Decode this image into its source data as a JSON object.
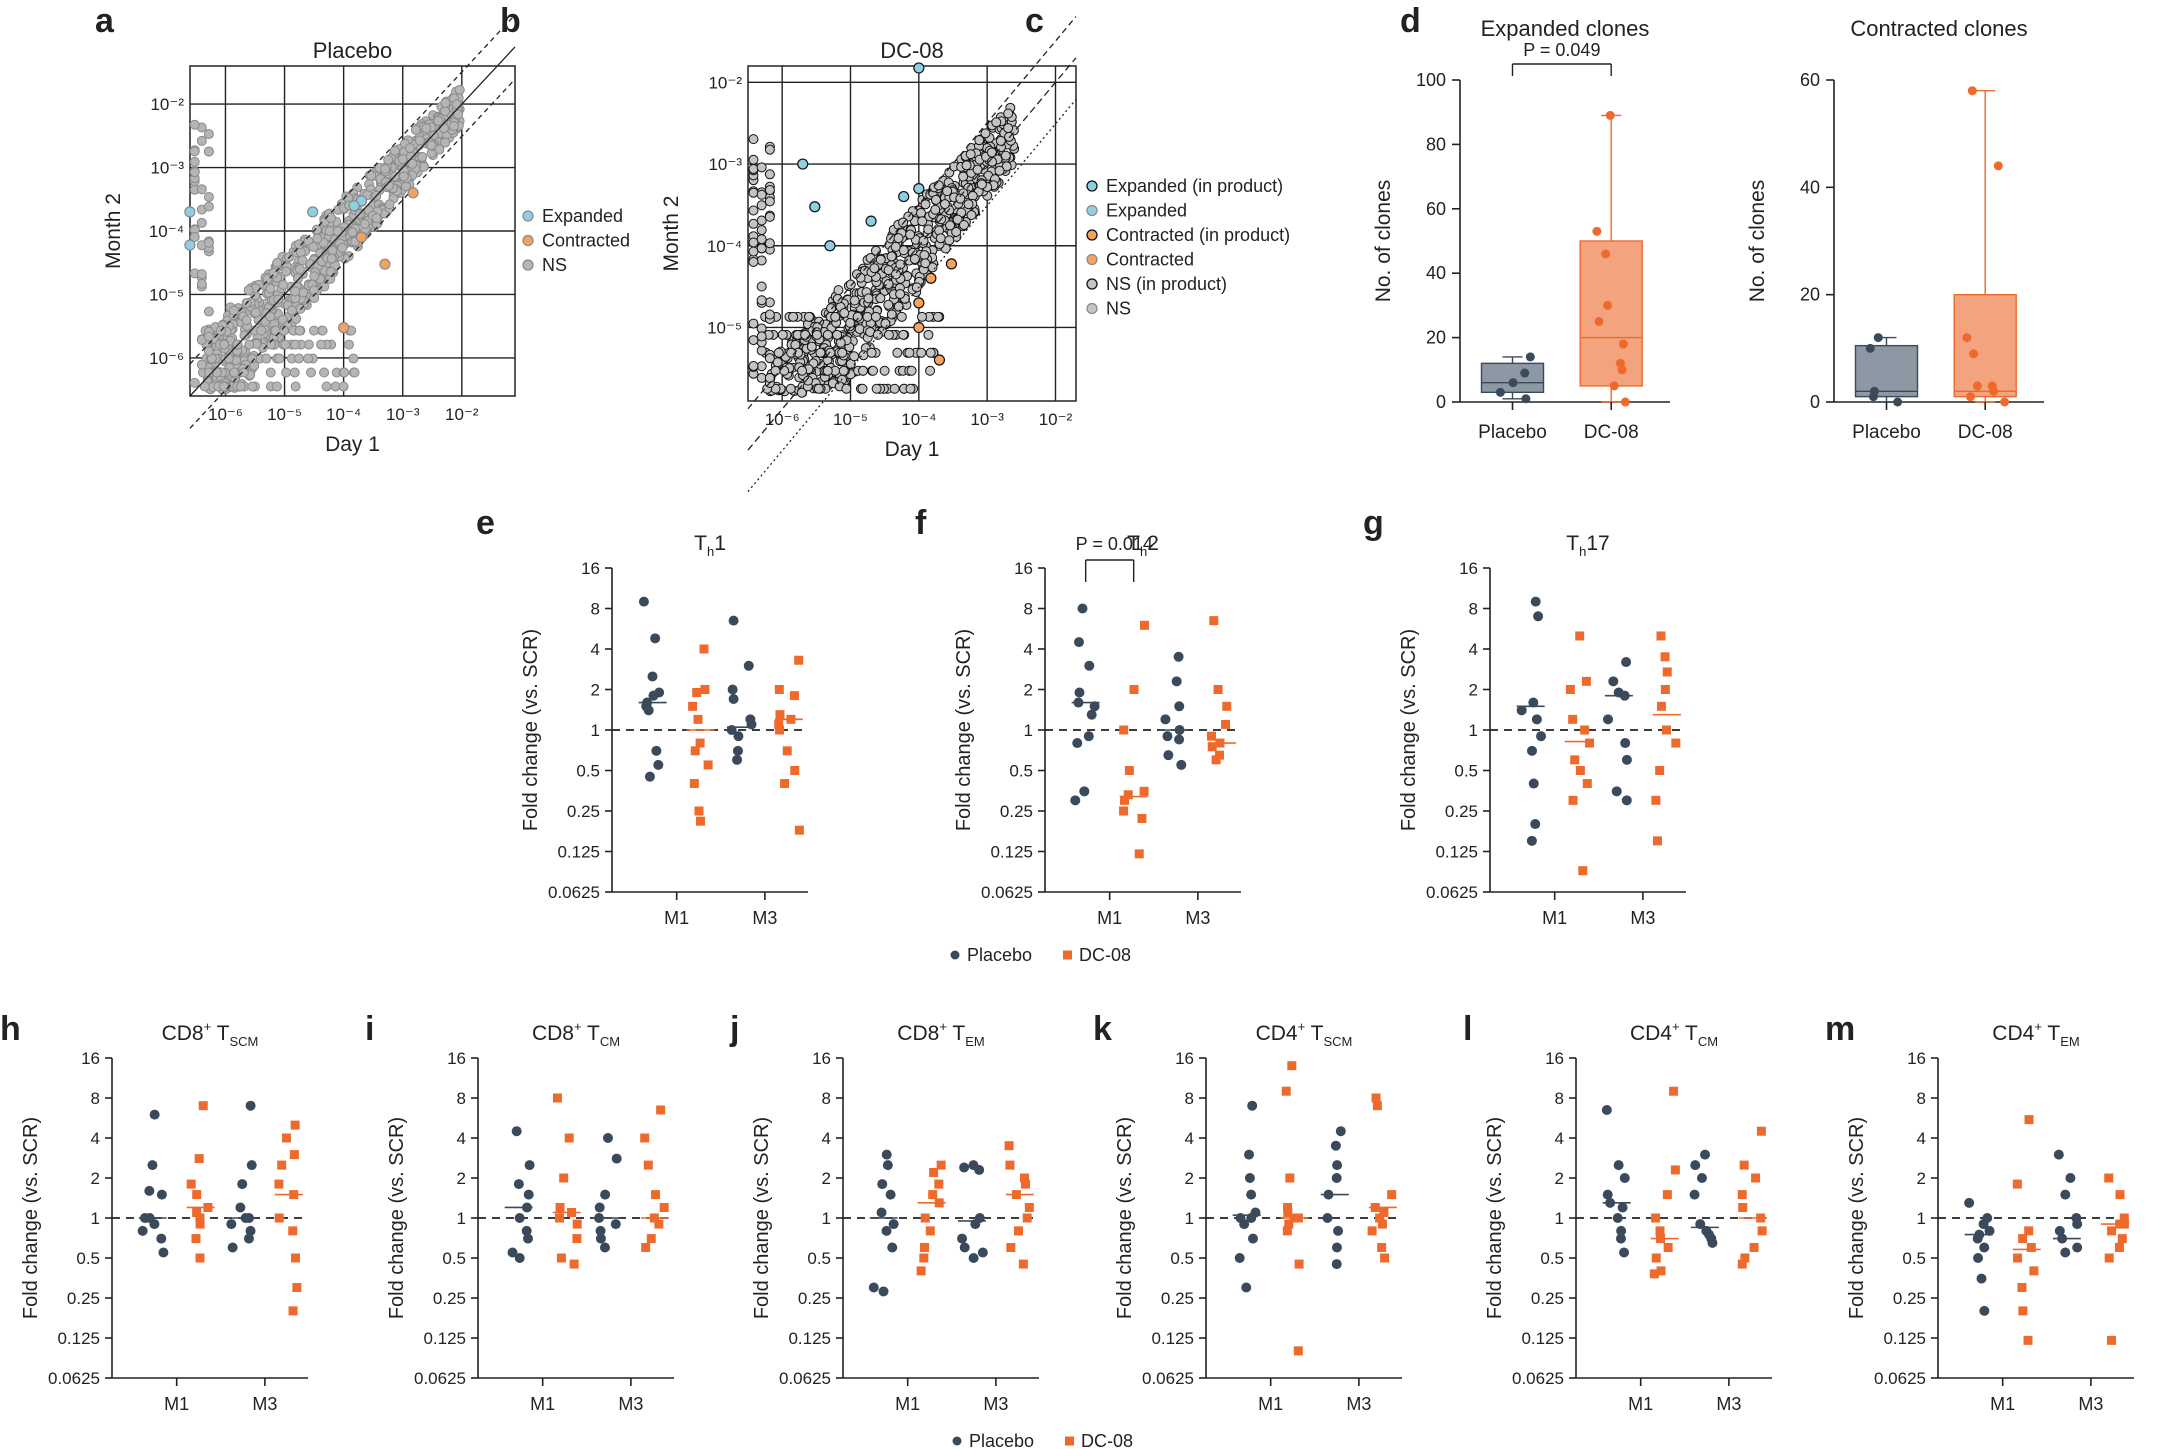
{
  "figure": {
    "panel_letters": [
      "a",
      "b",
      "c",
      "d",
      "e",
      "f",
      "g",
      "h",
      "i",
      "j",
      "k",
      "l",
      "m"
    ],
    "colors": {
      "placebo": "#3b4a5a",
      "dc08": "#ee6a2c",
      "dc08_fill": "#f3a37e",
      "placebo_fill": "#8c98a3",
      "expanded": "#8ecfe3",
      "contracted": "#f4a35f",
      "ns": "#a8a8a8",
      "axis": "#222222"
    },
    "legend_bottom": {
      "placebo": "Placebo",
      "dc08": "DC-08"
    }
  },
  "chart_data": [
    {
      "id": "a",
      "type": "scatter",
      "title": "Placebo",
      "xlabel": "Day 1",
      "ylabel": "Month 2",
      "xscale": "log",
      "yscale": "log",
      "xticks": [
        "10⁻⁶",
        "10⁻⁵",
        "10⁻⁴",
        "10⁻³",
        "10⁻²"
      ],
      "yticks": [
        "10⁻⁶",
        "10⁻⁵",
        "10⁻⁴",
        "10⁻³",
        "10⁻²"
      ],
      "legend": [
        "Expanded",
        "Contracted",
        "NS"
      ],
      "points": {
        "expanded": [
          [
            2.5e-07,
            0.0002
          ],
          [
            2.5e-07,
            6e-05
          ],
          [
            3e-05,
            0.0002
          ],
          [
            0.0002,
            0.0003
          ],
          [
            0.00015,
            0.00025
          ]
        ],
        "contracted": [
          [
            0.0002,
            8e-05
          ],
          [
            0.0005,
            3e-05
          ],
          [
            0.0015,
            0.0004
          ],
          [
            0.0001,
            3e-06
          ]
        ]
      }
    },
    {
      "id": "b",
      "type": "scatter",
      "title": "DC-08",
      "xlabel": "Day 1",
      "ylabel": "Month 2",
      "xscale": "log",
      "yscale": "log",
      "xticks": [
        "10⁻⁶",
        "10⁻⁵",
        "10⁻⁴",
        "10⁻³",
        "10⁻²"
      ],
      "yticks": [
        "10⁻⁵",
        "10⁻⁴",
        "10⁻³",
        "10⁻²"
      ],
      "legend": [
        "Expanded (in product)",
        "Expanded",
        "Contracted (in product)",
        "Contracted",
        "NS (in product)",
        "NS"
      ],
      "points": {
        "expanded": [
          [
            0.0001,
            0.015
          ],
          [
            2e-06,
            0.001
          ],
          [
            3e-06,
            0.0003
          ],
          [
            5e-06,
            0.0001
          ],
          [
            2e-05,
            0.0002
          ],
          [
            6e-05,
            0.0004
          ],
          [
            0.0001,
            0.0005
          ]
        ],
        "contracted": [
          [
            0.0001,
            2e-05
          ],
          [
            0.00015,
            4e-05
          ],
          [
            0.0003,
            6e-05
          ],
          [
            0.0001,
            1e-05
          ],
          [
            0.0002,
            4e-06
          ]
        ]
      }
    },
    {
      "id": "c",
      "type": "box",
      "title": "Expanded clones",
      "ylabel": "No. of clones",
      "ylim": [
        0,
        100
      ],
      "yticks": [
        "0",
        "20",
        "40",
        "60",
        "80",
        "100"
      ],
      "categories": [
        "Placebo",
        "DC-08"
      ],
      "annotation": "P = 0.049",
      "boxes": [
        {
          "name": "Placebo",
          "min": 1,
          "q1": 3,
          "median": 6,
          "q3": 12,
          "max": 14,
          "points": [
            14,
            9,
            6,
            3,
            1
          ]
        },
        {
          "name": "DC-08",
          "min": 0,
          "q1": 5,
          "median": 20,
          "q3": 50,
          "max": 89,
          "points": [
            89,
            53,
            46,
            30,
            25,
            18,
            12,
            10,
            5,
            0
          ]
        }
      ]
    },
    {
      "id": "d",
      "type": "box",
      "title": "Contracted clones",
      "ylabel": "No. of clones",
      "ylim": [
        0,
        60
      ],
      "yticks": [
        "0",
        "20",
        "40",
        "60"
      ],
      "categories": [
        "Placebo",
        "DC-08"
      ],
      "boxes": [
        {
          "name": "Placebo",
          "min": 0,
          "q1": 1,
          "median": 2,
          "q3": 10.5,
          "max": 12,
          "points": [
            12,
            10,
            2,
            1,
            0
          ]
        },
        {
          "name": "DC-08",
          "min": 0,
          "q1": 1,
          "median": 2,
          "q3": 20,
          "max": 58,
          "points": [
            58,
            44,
            12,
            9,
            3,
            3,
            2,
            1,
            0
          ]
        }
      ]
    },
    {
      "id": "e",
      "type": "scatter",
      "title_main": "T",
      "title_sub": "h",
      "title_tail": "1",
      "ylabel": "Fold change (vs. SCR)",
      "yscale": "log2",
      "yticks": [
        "0.0625",
        "0.125",
        "0.25",
        "0.5",
        "1",
        "2",
        "4",
        "8",
        "16"
      ],
      "categories": [
        "M1",
        "M3"
      ],
      "series": [
        {
          "name": "Placebo",
          "M1": [
            9,
            4.8,
            2.5,
            1.9,
            1.8,
            1.6,
            1.5,
            1.4,
            0.7,
            0.55,
            0.45
          ],
          "M3": [
            6.5,
            3,
            2,
            1.7,
            1.2,
            1.1,
            1,
            0.9,
            0.7,
            0.6
          ],
          "median": [
            1.6,
            1.05
          ]
        },
        {
          "name": "DC-08",
          "M1": [
            4,
            2,
            1.9,
            1.5,
            1.2,
            0.8,
            0.7,
            0.55,
            0.4,
            0.25,
            0.21
          ],
          "M3": [
            3.3,
            2,
            1.8,
            1.3,
            1.2,
            1.1,
            1,
            0.7,
            0.5,
            0.4,
            0.18
          ],
          "median": [
            1,
            1.2
          ]
        }
      ]
    },
    {
      "id": "f",
      "type": "scatter",
      "title_main": "T",
      "title_sub": "h",
      "title_tail": "2",
      "ylabel": "Fold change (vs. SCR)",
      "yscale": "log2",
      "yticks": [
        "0.0625",
        "0.125",
        "0.25",
        "0.5",
        "1",
        "2",
        "4",
        "8",
        "16"
      ],
      "categories": [
        "M1",
        "M3"
      ],
      "annotation": "P = 0.014",
      "series": [
        {
          "name": "Placebo",
          "M1": [
            8,
            4.5,
            3,
            1.9,
            1.6,
            1.5,
            1.3,
            0.9,
            0.8,
            0.35,
            0.3
          ],
          "M3": [
            3.5,
            2.3,
            1.5,
            1.2,
            1,
            0.9,
            0.85,
            0.65,
            0.55
          ],
          "median": [
            1.6,
            1
          ]
        },
        {
          "name": "DC-08",
          "M1": [
            6,
            2,
            1,
            0.5,
            0.35,
            0.33,
            0.3,
            0.25,
            0.22,
            0.12
          ],
          "M3": [
            6.5,
            2,
            1.5,
            1.1,
            0.9,
            0.8,
            0.75,
            0.65,
            0.6
          ],
          "median": [
            0.32,
            0.8
          ]
        }
      ]
    },
    {
      "id": "g",
      "type": "scatter",
      "title_main": "T",
      "title_sub": "h",
      "title_tail": "17",
      "ylabel": "Fold change (vs. SCR)",
      "yscale": "log2",
      "yticks": [
        "0.0625",
        "0.125",
        "0.25",
        "0.5",
        "1",
        "2",
        "4",
        "8",
        "16"
      ],
      "categories": [
        "M1",
        "M3"
      ],
      "series": [
        {
          "name": "Placebo",
          "M1": [
            9,
            7,
            1.6,
            1.4,
            1.2,
            0.9,
            0.7,
            0.4,
            0.2,
            0.15
          ],
          "M3": [
            3.2,
            2.3,
            1.9,
            1.8,
            1.2,
            0.8,
            0.6,
            0.35,
            0.3
          ],
          "median": [
            1.5,
            1.8
          ]
        },
        {
          "name": "DC-08",
          "M1": [
            5,
            2.3,
            2,
            1.2,
            1,
            0.8,
            0.6,
            0.5,
            0.4,
            0.3,
            0.09
          ],
          "M3": [
            5,
            3.5,
            2.7,
            2,
            1.5,
            1,
            0.8,
            0.5,
            0.3,
            0.15
          ],
          "median": [
            0.82,
            1.3
          ]
        }
      ]
    },
    {
      "id": "h",
      "type": "scatter",
      "title_main": "CD8",
      "title_sup": "+",
      "title_t": "T",
      "title_sub": "SCM",
      "ylabel": "Fold change (vs. SCR)",
      "yscale": "log2",
      "yticks": [
        "0.0625",
        "0.125",
        "0.25",
        "0.5",
        "1",
        "2",
        "4",
        "8",
        "16"
      ],
      "categories": [
        "M1",
        "M3"
      ],
      "series": [
        {
          "name": "Placebo",
          "M1": [
            6,
            2.5,
            1.6,
            1.5,
            1,
            1,
            0.9,
            0.8,
            0.7,
            0.55
          ],
          "M3": [
            7,
            2.5,
            1.8,
            1.2,
            1,
            1,
            0.9,
            0.8,
            0.7,
            0.6
          ],
          "median": [
            1,
            1
          ]
        },
        {
          "name": "DC-08",
          "M1": [
            7,
            2.8,
            1.8,
            1.5,
            1.2,
            1.1,
            1,
            0.9,
            0.7,
            0.5
          ],
          "M3": [
            5,
            4,
            3,
            2.5,
            1.8,
            1.5,
            1,
            0.8,
            0.5,
            0.3,
            0.2
          ],
          "median": [
            1.2,
            1.5
          ]
        }
      ]
    },
    {
      "id": "i",
      "type": "scatter",
      "title_main": "CD8",
      "title_sup": "+",
      "title_t": "T",
      "title_sub": "CM",
      "ylabel": "Fold change (vs. SCR)",
      "yscale": "log2",
      "yticks": [
        "0.0625",
        "0.125",
        "0.25",
        "0.5",
        "1",
        "2",
        "4",
        "8",
        "16"
      ],
      "categories": [
        "M1",
        "M3"
      ],
      "series": [
        {
          "name": "Placebo",
          "M1": [
            4.5,
            2.5,
            1.8,
            1.5,
            1.2,
            1,
            0.8,
            0.7,
            0.55,
            0.5
          ],
          "M3": [
            4,
            2.8,
            1.5,
            1.2,
            1,
            0.9,
            0.8,
            0.7,
            0.6
          ],
          "median": [
            1.2,
            1
          ]
        },
        {
          "name": "DC-08",
          "M1": [
            8,
            4,
            2,
            1.2,
            1.1,
            1,
            0.9,
            0.7,
            0.5,
            0.45
          ],
          "M3": [
            6.5,
            4,
            2.5,
            1.5,
            1.2,
            1,
            0.9,
            0.7,
            0.6
          ],
          "median": [
            1.1,
            1
          ]
        }
      ]
    },
    {
      "id": "j",
      "type": "scatter",
      "title_main": "CD8",
      "title_sup": "+",
      "title_t": "T",
      "title_sub": "EM",
      "ylabel": "Fold change (vs. SCR)",
      "yscale": "log2",
      "yticks": [
        "0.0625",
        "0.125",
        "0.25",
        "0.5",
        "1",
        "2",
        "4",
        "8",
        "16"
      ],
      "categories": [
        "M1",
        "M3"
      ],
      "series": [
        {
          "name": "Placebo",
          "M1": [
            3,
            2.5,
            1.8,
            1.5,
            1.1,
            0.9,
            0.8,
            0.6,
            0.3,
            0.28
          ],
          "M3": [
            2.5,
            2.4,
            2.3,
            1,
            0.9,
            0.7,
            0.6,
            0.55,
            0.5
          ],
          "median": [
            1,
            0.95
          ]
        },
        {
          "name": "DC-08",
          "M1": [
            2.5,
            2.2,
            1.8,
            1.5,
            1.3,
            1,
            0.8,
            0.6,
            0.5,
            0.4
          ],
          "M3": [
            3.5,
            2.5,
            2,
            1.8,
            1.5,
            1.2,
            1,
            0.8,
            0.6,
            0.45
          ],
          "median": [
            1.3,
            1.5
          ]
        }
      ]
    },
    {
      "id": "k",
      "type": "scatter",
      "title_main": "CD4",
      "title_sup": "+",
      "title_t": "T",
      "title_sub": "SCM",
      "ylabel": "Fold change (vs. SCR)",
      "yscale": "log2",
      "yticks": [
        "0.0625",
        "0.125",
        "0.25",
        "0.5",
        "1",
        "2",
        "4",
        "8",
        "16"
      ],
      "categories": [
        "M1",
        "M3"
      ],
      "series": [
        {
          "name": "Placebo",
          "M1": [
            7,
            3,
            2,
            1.5,
            1.1,
            1,
            1,
            0.9,
            0.7,
            0.5,
            0.3
          ],
          "M3": [
            4.5,
            3.5,
            2.5,
            2,
            1.5,
            1,
            0.8,
            0.6,
            0.45
          ],
          "median": [
            1.05,
            1.5
          ]
        },
        {
          "name": "DC-08",
          "M1": [
            14,
            9,
            2,
            1.2,
            1.1,
            1,
            1,
            0.9,
            0.8,
            0.45,
            0.1
          ],
          "M3": [
            8,
            7,
            1.5,
            1.2,
            1.1,
            1,
            0.9,
            0.8,
            0.6,
            0.5
          ],
          "median": [
            1,
            1.2
          ]
        }
      ]
    },
    {
      "id": "l",
      "type": "scatter",
      "title_main": "CD4",
      "title_sup": "+",
      "title_t": "T",
      "title_sub": "CM",
      "ylabel": "Fold change (vs. SCR)",
      "yscale": "log2",
      "yticks": [
        "0.0625",
        "0.125",
        "0.25",
        "0.5",
        "1",
        "2",
        "4",
        "8",
        "16"
      ],
      "categories": [
        "M1",
        "M3"
      ],
      "series": [
        {
          "name": "Placebo",
          "M1": [
            6.5,
            2.5,
            2,
            1.5,
            1.3,
            1.2,
            1,
            0.8,
            0.7,
            0.55
          ],
          "M3": [
            3,
            2.5,
            2,
            1.5,
            0.9,
            0.8,
            0.75,
            0.7,
            0.65
          ],
          "median": [
            1.3,
            0.85
          ]
        },
        {
          "name": "DC-08",
          "M1": [
            9,
            2.3,
            1.5,
            1,
            0.8,
            0.7,
            0.6,
            0.5,
            0.4,
            0.38
          ],
          "M3": [
            4.5,
            2.5,
            2,
            1.5,
            1.2,
            1,
            0.8,
            0.6,
            0.5,
            0.45
          ],
          "median": [
            0.7,
            1
          ]
        }
      ]
    },
    {
      "id": "m",
      "type": "scatter",
      "title_main": "CD4",
      "title_sup": "+",
      "title_t": "T",
      "title_sub": "EM",
      "ylabel": "Fold change (vs. SCR)",
      "yscale": "log2",
      "yticks": [
        "0.0625",
        "0.125",
        "0.25",
        "0.5",
        "1",
        "2",
        "4",
        "8",
        "16"
      ],
      "categories": [
        "M1",
        "M3"
      ],
      "series": [
        {
          "name": "Placebo",
          "M1": [
            1.3,
            1,
            0.9,
            0.8,
            0.75,
            0.7,
            0.6,
            0.5,
            0.35,
            0.2
          ],
          "M3": [
            3,
            2,
            1.5,
            1,
            0.9,
            0.8,
            0.7,
            0.6,
            0.55
          ],
          "median": [
            0.75,
            0.7
          ]
        },
        {
          "name": "DC-08",
          "M1": [
            5.5,
            1.8,
            0.8,
            0.7,
            0.6,
            0.5,
            0.4,
            0.3,
            0.2,
            0.12
          ],
          "M3": [
            2,
            1.5,
            1,
            0.9,
            0.9,
            0.8,
            0.7,
            0.6,
            0.5,
            0.12
          ],
          "median": [
            0.58,
            0.9
          ]
        }
      ]
    }
  ]
}
